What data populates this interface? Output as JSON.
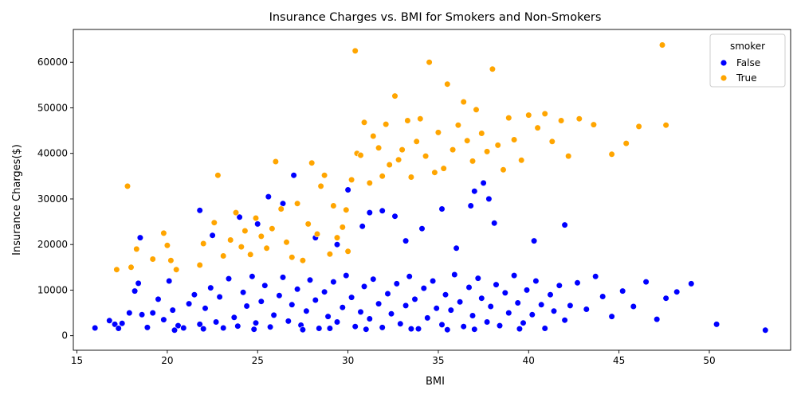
{
  "chart_data": {
    "type": "scatter",
    "title": "Insurance Charges vs. BMI for Smokers and Non-Smokers",
    "xlabel": "BMI",
    "ylabel": "Insurance Charges($)",
    "xlim": [
      14.8,
      54.5
    ],
    "ylim": [
      -3200,
      67200
    ],
    "x_ticks": [
      15,
      20,
      25,
      30,
      35,
      40,
      45,
      50
    ],
    "y_ticks": [
      0,
      10000,
      20000,
      30000,
      40000,
      50000,
      60000
    ],
    "grid": false,
    "legend": {
      "title": "smoker",
      "placement": "top-right",
      "entries": [
        "False",
        "True"
      ]
    },
    "colors": {
      "False": "#0000ff",
      "True": "#ffa500"
    },
    "series": [
      {
        "name": "False",
        "color": "#0000ff",
        "points": [
          [
            16.0,
            1700
          ],
          [
            16.8,
            3300
          ],
          [
            17.1,
            2500
          ],
          [
            17.3,
            1600
          ],
          [
            17.5,
            2700
          ],
          [
            17.9,
            5000
          ],
          [
            18.2,
            9800
          ],
          [
            18.4,
            11500
          ],
          [
            18.6,
            4600
          ],
          [
            18.9,
            1800
          ],
          [
            19.2,
            5000
          ],
          [
            19.5,
            8000
          ],
          [
            19.8,
            3500
          ],
          [
            20.1,
            12000
          ],
          [
            20.3,
            5600
          ],
          [
            20.6,
            2200
          ],
          [
            20.9,
            1700
          ],
          [
            21.2,
            7000
          ],
          [
            21.5,
            9000
          ],
          [
            21.8,
            2500
          ],
          [
            22.1,
            6000
          ],
          [
            22.4,
            10500
          ],
          [
            22.7,
            3000
          ],
          [
            22.9,
            8500
          ],
          [
            23.1,
            1700
          ],
          [
            23.4,
            12500
          ],
          [
            23.7,
            4000
          ],
          [
            23.9,
            2100
          ],
          [
            24.2,
            9500
          ],
          [
            24.4,
            6500
          ],
          [
            24.7,
            13000
          ],
          [
            24.9,
            2800
          ],
          [
            25.2,
            7500
          ],
          [
            25.4,
            11000
          ],
          [
            25.7,
            1900
          ],
          [
            25.9,
            4500
          ],
          [
            26.2,
            8800
          ],
          [
            26.4,
            12800
          ],
          [
            26.7,
            3200
          ],
          [
            26.9,
            6800
          ],
          [
            27.2,
            10200
          ],
          [
            27.4,
            2300
          ],
          [
            27.7,
            5400
          ],
          [
            27.9,
            12200
          ],
          [
            28.2,
            7800
          ],
          [
            28.4,
            1600
          ],
          [
            28.7,
            9600
          ],
          [
            28.9,
            4200
          ],
          [
            29.2,
            11800
          ],
          [
            29.4,
            3000
          ],
          [
            29.7,
            6200
          ],
          [
            29.9,
            13200
          ],
          [
            30.2,
            8400
          ],
          [
            30.4,
            2000
          ],
          [
            30.7,
            5200
          ],
          [
            30.9,
            10800
          ],
          [
            31.2,
            3700
          ],
          [
            31.4,
            12400
          ],
          [
            31.7,
            7000
          ],
          [
            31.9,
            1800
          ],
          [
            32.2,
            9200
          ],
          [
            32.4,
            4800
          ],
          [
            32.7,
            11400
          ],
          [
            32.9,
            2600
          ],
          [
            33.2,
            6600
          ],
          [
            33.4,
            13000
          ],
          [
            33.7,
            8000
          ],
          [
            33.9,
            1500
          ],
          [
            34.2,
            10400
          ],
          [
            34.4,
            3900
          ],
          [
            34.7,
            12000
          ],
          [
            34.9,
            6000
          ],
          [
            35.2,
            2400
          ],
          [
            35.4,
            9000
          ],
          [
            35.7,
            5600
          ],
          [
            35.9,
            13400
          ],
          [
            36.2,
            7400
          ],
          [
            36.4,
            2000
          ],
          [
            36.7,
            10600
          ],
          [
            36.9,
            4400
          ],
          [
            37.2,
            12600
          ],
          [
            37.4,
            8200
          ],
          [
            37.7,
            3000
          ],
          [
            37.9,
            6400
          ],
          [
            38.2,
            11200
          ],
          [
            38.4,
            2200
          ],
          [
            38.7,
            9400
          ],
          [
            38.9,
            5000
          ],
          [
            39.2,
            13200
          ],
          [
            39.4,
            7200
          ],
          [
            39.7,
            2800
          ],
          [
            39.9,
            10000
          ],
          [
            40.2,
            4600
          ],
          [
            40.4,
            12000
          ],
          [
            40.7,
            6800
          ],
          [
            40.9,
            1600
          ],
          [
            41.2,
            9000
          ],
          [
            41.4,
            5400
          ],
          [
            41.7,
            11000
          ],
          [
            42.0,
            3400
          ],
          [
            42.3,
            6600
          ],
          [
            42.7,
            11600
          ],
          [
            43.2,
            5800
          ],
          [
            43.7,
            13000
          ],
          [
            44.1,
            8600
          ],
          [
            44.6,
            4200
          ],
          [
            45.2,
            9800
          ],
          [
            45.8,
            6400
          ],
          [
            46.5,
            11800
          ],
          [
            47.1,
            3600
          ],
          [
            47.6,
            8200
          ],
          [
            48.2,
            9600
          ],
          [
            49.0,
            11400
          ],
          [
            50.4,
            2500
          ],
          [
            53.1,
            1200
          ],
          [
            18.5,
            21500
          ],
          [
            21.8,
            27500
          ],
          [
            22.5,
            22000
          ],
          [
            24.0,
            26000
          ],
          [
            25.0,
            24500
          ],
          [
            25.6,
            30500
          ],
          [
            26.4,
            29000
          ],
          [
            27.0,
            35200
          ],
          [
            28.2,
            21500
          ],
          [
            29.4,
            20000
          ],
          [
            30.0,
            32000
          ],
          [
            30.8,
            24000
          ],
          [
            31.2,
            27000
          ],
          [
            31.9,
            27400
          ],
          [
            32.6,
            26200
          ],
          [
            33.2,
            20800
          ],
          [
            34.1,
            23500
          ],
          [
            35.2,
            27800
          ],
          [
            36.0,
            19200
          ],
          [
            36.8,
            28500
          ],
          [
            37.0,
            31700
          ],
          [
            37.5,
            33500
          ],
          [
            37.8,
            30000
          ],
          [
            38.1,
            24700
          ],
          [
            40.3,
            20800
          ],
          [
            42.0,
            24300
          ],
          [
            20.4,
            1200
          ],
          [
            22.0,
            1500
          ],
          [
            24.8,
            1400
          ],
          [
            27.5,
            1300
          ],
          [
            29.0,
            1600
          ],
          [
            31.0,
            1400
          ],
          [
            33.5,
            1500
          ],
          [
            35.5,
            1300
          ],
          [
            37.0,
            1400
          ],
          [
            39.5,
            1500
          ]
        ]
      },
      {
        "name": "True",
        "color": "#ffa500",
        "points": [
          [
            17.2,
            14500
          ],
          [
            17.8,
            32800
          ],
          [
            18.0,
            15000
          ],
          [
            18.3,
            19000
          ],
          [
            19.2,
            16800
          ],
          [
            19.8,
            22500
          ],
          [
            20.0,
            19800
          ],
          [
            20.2,
            16500
          ],
          [
            20.5,
            14500
          ],
          [
            21.8,
            15500
          ],
          [
            22.0,
            20200
          ],
          [
            22.6,
            24800
          ],
          [
            22.8,
            35200
          ],
          [
            23.1,
            17500
          ],
          [
            23.5,
            21000
          ],
          [
            23.8,
            27000
          ],
          [
            24.1,
            19500
          ],
          [
            24.3,
            23000
          ],
          [
            24.6,
            17800
          ],
          [
            24.9,
            25800
          ],
          [
            25.2,
            21800
          ],
          [
            25.5,
            19200
          ],
          [
            25.8,
            23500
          ],
          [
            26.0,
            38200
          ],
          [
            26.3,
            27800
          ],
          [
            26.6,
            20500
          ],
          [
            26.9,
            17200
          ],
          [
            27.2,
            29000
          ],
          [
            27.5,
            16500
          ],
          [
            27.8,
            24500
          ],
          [
            28.0,
            37900
          ],
          [
            28.3,
            22300
          ],
          [
            28.5,
            32800
          ],
          [
            28.7,
            35200
          ],
          [
            29.0,
            17900
          ],
          [
            29.2,
            28500
          ],
          [
            29.4,
            21500
          ],
          [
            29.7,
            23800
          ],
          [
            29.9,
            27600
          ],
          [
            30.0,
            18500
          ],
          [
            30.2,
            34200
          ],
          [
            30.4,
            62500
          ],
          [
            30.5,
            40000
          ],
          [
            30.7,
            39600
          ],
          [
            30.9,
            46800
          ],
          [
            31.2,
            33500
          ],
          [
            31.4,
            43800
          ],
          [
            31.7,
            41200
          ],
          [
            31.9,
            35000
          ],
          [
            32.1,
            46400
          ],
          [
            32.3,
            37500
          ],
          [
            32.6,
            52600
          ],
          [
            32.8,
            38600
          ],
          [
            33.0,
            40800
          ],
          [
            33.3,
            47200
          ],
          [
            33.5,
            34800
          ],
          [
            33.8,
            42600
          ],
          [
            34.0,
            47600
          ],
          [
            34.3,
            39400
          ],
          [
            34.5,
            60000
          ],
          [
            34.8,
            35800
          ],
          [
            35.0,
            44600
          ],
          [
            35.3,
            36700
          ],
          [
            35.5,
            55200
          ],
          [
            35.8,
            40800
          ],
          [
            36.1,
            46200
          ],
          [
            36.4,
            51300
          ],
          [
            36.6,
            42800
          ],
          [
            36.9,
            38300
          ],
          [
            37.1,
            49600
          ],
          [
            37.4,
            44400
          ],
          [
            37.7,
            40400
          ],
          [
            38.0,
            58500
          ],
          [
            38.3,
            41800
          ],
          [
            38.6,
            36400
          ],
          [
            38.9,
            47800
          ],
          [
            39.2,
            43000
          ],
          [
            39.6,
            38500
          ],
          [
            40.0,
            48400
          ],
          [
            40.5,
            45600
          ],
          [
            40.9,
            48700
          ],
          [
            41.3,
            42600
          ],
          [
            41.8,
            47200
          ],
          [
            42.2,
            39400
          ],
          [
            42.8,
            47600
          ],
          [
            43.6,
            46300
          ],
          [
            44.6,
            39800
          ],
          [
            45.4,
            42200
          ],
          [
            46.1,
            45900
          ],
          [
            47.4,
            63800
          ],
          [
            47.6,
            46200
          ]
        ]
      }
    ]
  }
}
